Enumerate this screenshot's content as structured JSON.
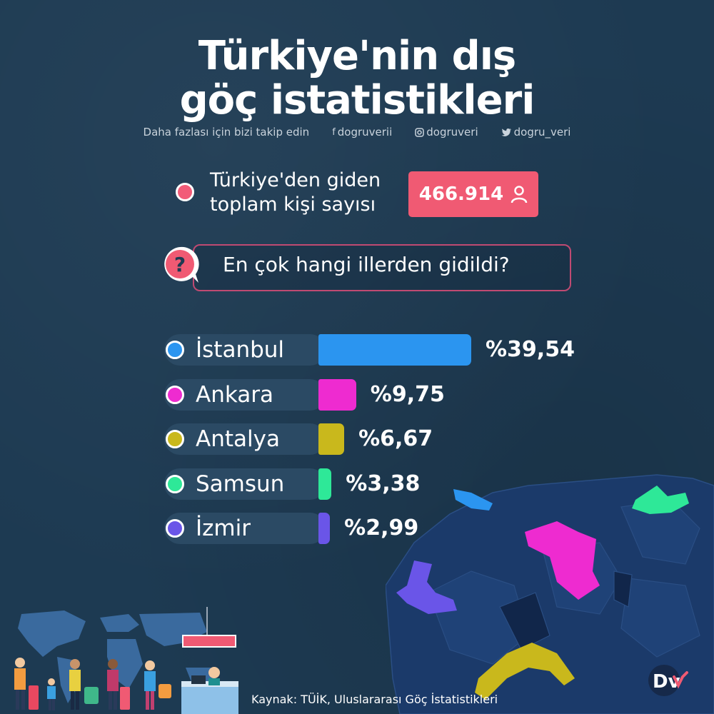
{
  "title_line1": "Türkiye'nin dış",
  "title_line2": "göç istatistikleri",
  "social": {
    "follow_text": "Daha fazlası için bizi takip edin",
    "facebook": "dogruverii",
    "instagram": "dogruveri",
    "twitter": "dogru_veri"
  },
  "total": {
    "label_line1": "Türkiye'den giden",
    "label_line2": "toplam kişi sayısı",
    "value": "466.914"
  },
  "question": "En çok hangi illerden gidildi?",
  "chart_data": {
    "type": "bar",
    "categories": [
      "İstanbul",
      "Ankara",
      "Antalya",
      "Samsun",
      "İzmir"
    ],
    "values": [
      39.54,
      9.75,
      6.67,
      3.38,
      2.99
    ],
    "value_labels": [
      "%39,54",
      "%9,75",
      "%6,67",
      "%3,38",
      "%2,99"
    ],
    "colors": [
      "#2b95f0",
      "#ee2bd0",
      "#c9b81c",
      "#2ee898",
      "#6a55e8"
    ],
    "unit": "%",
    "orientation": "horizontal"
  },
  "source": "Kaynak: TÜİK, Uluslararası Göç İstatistikleri",
  "logo_text": "Dv"
}
